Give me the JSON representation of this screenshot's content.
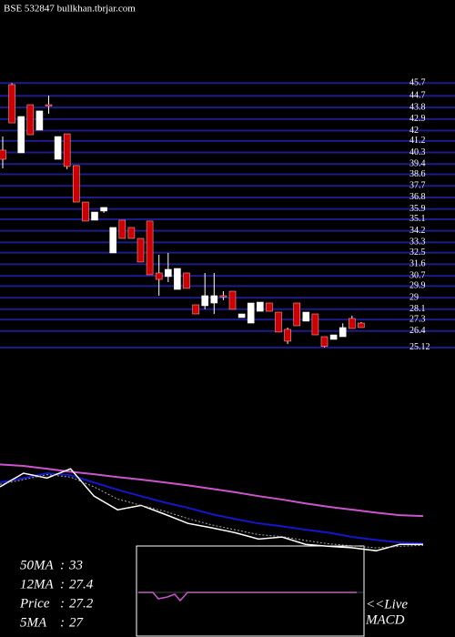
{
  "chart_data": [
    {
      "type": "candlestick",
      "title": "BSE 532847 bullkhan.tbrjar.com",
      "open": [
        40.48,
        45.58,
        40.27,
        44.02,
        42.04,
        44.02,
        39.77,
        41.75,
        39.28,
        36.44,
        35.03,
        35.74,
        32.48,
        35.03,
        34.46,
        33.61,
        34.96,
        30.92,
        30.64,
        29.64,
        30.92,
        28.44,
        28.37,
        28.58,
        29.15,
        29.5,
        27.45,
        27.02,
        27.94,
        28.58,
        27.87,
        26.53,
        28.58,
        27.17,
        27.73,
        25.96,
        25.75,
        25.96,
        27.38,
        27.02
      ],
      "high": [
        41.54,
        45.7,
        43.1,
        44.02,
        43.53,
        44.73,
        41.54,
        41.75,
        39.28,
        36.44,
        35.66,
        36.02,
        34.46,
        35.03,
        34.46,
        33.61,
        34.96,
        32.34,
        32.48,
        31.27,
        30.92,
        28.44,
        30.92,
        30.92,
        29.5,
        29.5,
        27.73,
        28.58,
        28.65,
        28.58,
        27.87,
        26.67,
        28.58,
        27.87,
        27.73,
        25.96,
        26.1,
        27.0,
        27.6,
        27.1
      ],
      "low": [
        39.06,
        42.6,
        40.27,
        41.68,
        42.04,
        43.31,
        39.77,
        39.0,
        36.44,
        34.96,
        35.03,
        35.6,
        32.48,
        33.61,
        33.61,
        31.77,
        30.78,
        29.15,
        30.21,
        29.64,
        29.72,
        27.73,
        28.09,
        27.73,
        28.8,
        28.09,
        27.45,
        27.02,
        27.94,
        27.94,
        26.32,
        25.4,
        26.81,
        27.17,
        26.1,
        25.12,
        25.75,
        25.96,
        26.6,
        26.67
      ],
      "close": [
        39.77,
        42.6,
        43.1,
        41.68,
        43.53,
        43.95,
        41.54,
        39.21,
        36.44,
        34.96,
        35.66,
        36.02,
        34.46,
        33.61,
        33.61,
        31.77,
        30.78,
        30.42,
        31.2,
        31.27,
        29.72,
        27.73,
        29.15,
        29.15,
        29.1,
        28.09,
        27.73,
        28.58,
        28.65,
        27.94,
        26.32,
        25.61,
        26.81,
        27.87,
        26.1,
        25.2,
        26.1,
        26.67,
        26.6,
        26.67
      ],
      "up_color": "#ffffff",
      "down_color": "#cc0000",
      "ylim": [
        24.5,
        46.5
      ],
      "yticks": [
        45.7,
        44.7,
        43.8,
        42.9,
        42.0,
        41.2,
        40.3,
        39.4,
        38.6,
        37.7,
        36.8,
        35.9,
        35.1,
        34.2,
        33.3,
        32.5,
        31.6,
        30.7,
        29.9,
        29.0,
        28.1,
        27.3,
        26.4,
        25.12
      ],
      "grid": true,
      "grid_color": "#1c1c8a"
    },
    {
      "type": "line",
      "series": [
        {
          "name": "50MA",
          "color": "#cc55cc",
          "current": 33,
          "values": [
            43.6,
            43.3,
            42.7,
            42.1,
            41.6,
            41.0,
            40.5,
            39.9,
            39.3,
            38.6,
            37.9,
            37.1,
            36.4,
            35.6,
            34.9,
            34.3,
            33.7,
            33.2,
            33.0
          ]
        },
        {
          "name": "12MA",
          "color": "#1515cc",
          "current": 27.4,
          "values": [
            39.9,
            40.8,
            41.8,
            41.4,
            39.9,
            38.4,
            37.1,
            35.8,
            34.7,
            33.4,
            32.4,
            31.5,
            30.9,
            30.2,
            29.6,
            28.7,
            28.1,
            27.6,
            27.4
          ]
        },
        {
          "name": "Price",
          "color": "#ffffff",
          "current": 27.2,
          "values": [
            39.0,
            41.8,
            40.8,
            42.7,
            37.1,
            34.3,
            35.2,
            33.4,
            31.5,
            30.6,
            29.6,
            28.3,
            28.7,
            27.2,
            26.8,
            26.5,
            25.9,
            27.2,
            27.2
          ]
        },
        {
          "name": "5MA",
          "color": "#aaaaaa",
          "current": 27,
          "values": [
            39.5,
            40.5,
            41.5,
            41.0,
            39.0,
            36.5,
            35.2,
            34.0,
            32.5,
            31.2,
            30.2,
            29.2,
            28.8,
            28.0,
            27.3,
            26.9,
            26.5,
            26.8,
            27.0
          ]
        }
      ],
      "ylim": [
        25,
        47.4
      ],
      "annotations": [
        "<<Live",
        "MACD"
      ]
    }
  ]
}
